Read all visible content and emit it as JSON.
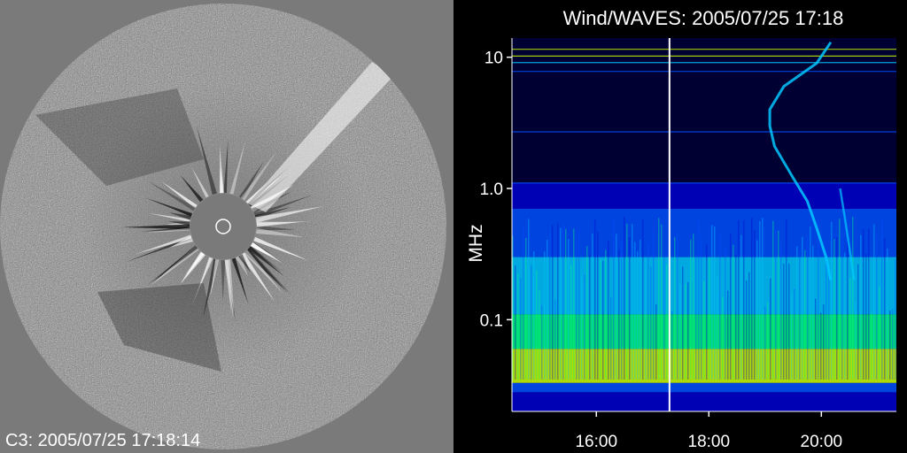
{
  "left_panel": {
    "caption": "C3: 2005/07/25 17:18:14",
    "background_color": "#7a7a7a"
  },
  "chart_data": {
    "type": "heatmap",
    "title": "Wind/WAVES: 2005/07/25 17:18",
    "xlabel": "",
    "ylabel": "MHz",
    "x_ticks": [
      "16:00",
      "18:00",
      "20:00"
    ],
    "y_ticks": [
      "10",
      "1.0",
      "0.1"
    ],
    "y_scale": "log",
    "xlim": [
      "14:30",
      "21:20"
    ],
    "ylim": [
      0.02,
      14
    ],
    "current_time_marker": "17:18",
    "colormap": [
      "#000033",
      "#0000cc",
      "#0050ff",
      "#00c8ff",
      "#00ff80",
      "#ccff00"
    ]
  }
}
